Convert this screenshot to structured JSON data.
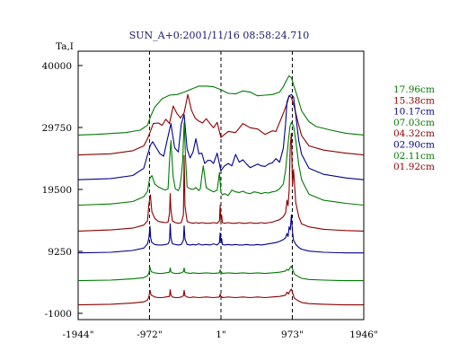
{
  "chart_data": {
    "type": "line",
    "title": "SUN_A+0:2001/11/16 08:58:24.710",
    "ylabel": "Ta,I",
    "x_ticks": [
      {
        "value": -1944,
        "label": "-1944\""
      },
      {
        "value": -972,
        "label": "-972\""
      },
      {
        "value": 1,
        "label": "1\""
      },
      {
        "value": 973,
        "label": "973\""
      },
      {
        "value": 1946,
        "label": "1946\""
      }
    ],
    "y_ticks": [
      {
        "value": 40000,
        "label": "40000"
      },
      {
        "value": 29750,
        "label": "29750"
      },
      {
        "value": 19500,
        "label": "19500"
      },
      {
        "value": 9250,
        "label": "9250"
      },
      {
        "value": -1000,
        "label": "-1000"
      }
    ],
    "xlim": [
      -1944,
      1946
    ],
    "ylim": [
      -1000,
      40000
    ],
    "markers_x": [
      -972,
      1,
      973
    ],
    "series": [
      {
        "name": "17.96cm",
        "color": "#007a00",
        "offset": 28200,
        "x": [
          -1944,
          -1700,
          -1300,
          -1100,
          -1000,
          -960,
          -900,
          -800,
          -700,
          -600,
          -500,
          -400,
          -300,
          -200,
          -100,
          0,
          100,
          200,
          300,
          400,
          500,
          600,
          700,
          800,
          850,
          900,
          930,
          960,
          1000,
          1050,
          1100,
          1200,
          1300,
          1500,
          1700,
          1946
        ],
        "values": [
          300,
          400,
          700,
          1100,
          1900,
          3300,
          4900,
          6300,
          6900,
          7000,
          7400,
          7900,
          8400,
          8400,
          8300,
          7800,
          7200,
          7100,
          7600,
          7400,
          6800,
          6900,
          7000,
          7400,
          8300,
          9500,
          10100,
          9800,
          8200,
          6300,
          4300,
          2500,
          1700,
          1100,
          600,
          300
        ]
      },
      {
        "name": "15.38cm",
        "color": "#8b0000",
        "offset": 24900,
        "x": [
          -1944,
          -1500,
          -1200,
          -1050,
          -1000,
          -960,
          -920,
          -850,
          -800,
          -750,
          -700,
          -650,
          -600,
          -550,
          -500,
          -450,
          -400,
          -350,
          -300,
          -250,
          -200,
          -150,
          -100,
          -50,
          0,
          100,
          200,
          300,
          400,
          500,
          600,
          700,
          750,
          800,
          850,
          900,
          930,
          960,
          1000,
          1050,
          1100,
          1200,
          1400,
          1700,
          1946
        ],
        "values": [
          300,
          500,
          1000,
          1800,
          3000,
          4200,
          5500,
          5600,
          5200,
          6200,
          5500,
          8400,
          7200,
          6400,
          7300,
          10300,
          7700,
          6400,
          5900,
          5600,
          6300,
          5500,
          4800,
          5700,
          3200,
          4200,
          4000,
          5500,
          4800,
          4600,
          3700,
          4300,
          4200,
          5700,
          7200,
          8800,
          10100,
          9800,
          8200,
          5700,
          3500,
          1800,
          1100,
          600,
          300
        ]
      },
      {
        "name": "10.17cm",
        "color": "#00008b",
        "offset": 20800,
        "x": [
          -1944,
          -1500,
          -1200,
          -1050,
          -1000,
          -960,
          -930,
          -880,
          -830,
          -780,
          -730,
          -680,
          -630,
          -580,
          -540,
          -500,
          -460,
          -420,
          -380,
          -340,
          -300,
          -260,
          -220,
          -180,
          -140,
          -100,
          -50,
          0,
          50,
          100,
          150,
          200,
          250,
          300,
          350,
          400,
          450,
          500,
          550,
          600,
          650,
          700,
          750,
          800,
          850,
          880,
          900,
          930,
          960,
          990,
          1020,
          1060,
          1100,
          1200,
          1400,
          1700,
          1946
        ],
        "values": [
          300,
          500,
          1000,
          2200,
          4400,
          6000,
          6600,
          5600,
          4600,
          4200,
          6900,
          9600,
          5600,
          4900,
          9500,
          11100,
          5400,
          3900,
          4900,
          7100,
          4600,
          4700,
          3000,
          3500,
          3500,
          3000,
          4700,
          1800,
          2600,
          3000,
          2600,
          4500,
          3200,
          3600,
          2900,
          2300,
          2600,
          2900,
          2600,
          2500,
          2900,
          3100,
          3800,
          3200,
          5500,
          9500,
          13200,
          14200,
          14400,
          14000,
          11000,
          6800,
          4500,
          2200,
          1200,
          600,
          300
        ]
      },
      {
        "name": "07.03cm",
        "color": "#007a00",
        "offset": 16600,
        "x": [
          -1944,
          -1500,
          -1200,
          -1050,
          -1000,
          -970,
          -940,
          -900,
          -850,
          -800,
          -760,
          -720,
          -700,
          -680,
          -650,
          -620,
          -580,
          -560,
          -540,
          -520,
          -500,
          -480,
          -460,
          -420,
          -380,
          -340,
          -300,
          -280,
          -260,
          -240,
          -200,
          -150,
          -100,
          -50,
          -20,
          0,
          20,
          50,
          100,
          150,
          200,
          250,
          300,
          350,
          400,
          450,
          500,
          550,
          600,
          650,
          700,
          750,
          800,
          850,
          880,
          900,
          920,
          940,
          960,
          990,
          1020,
          1060,
          1100,
          1200,
          1400,
          1700,
          1946
        ],
        "values": [
          300,
          500,
          900,
          1700,
          2600,
          4700,
          5200,
          3800,
          3300,
          3000,
          2800,
          3000,
          7500,
          11000,
          5000,
          3000,
          2700,
          3200,
          5000,
          7700,
          14000,
          7700,
          3300,
          3000,
          2900,
          3200,
          2700,
          3000,
          5100,
          6800,
          3200,
          2800,
          2500,
          2800,
          5700,
          2500,
          2000,
          2200,
          1900,
          2800,
          2500,
          2400,
          2600,
          2300,
          2200,
          2500,
          2400,
          2200,
          2400,
          2300,
          2500,
          2600,
          3000,
          3800,
          6000,
          8500,
          11000,
          13300,
          14000,
          13400,
          11000,
          7000,
          4500,
          2100,
          1100,
          600,
          300
        ]
      },
      {
        "name": "04.32cm",
        "color": "#8b0000",
        "offset": 12300,
        "x": [
          -1944,
          -1500,
          -1200,
          -1050,
          -1000,
          -980,
          -960,
          -940,
          -900,
          -850,
          -800,
          -750,
          -720,
          -700,
          -690,
          -680,
          -660,
          -620,
          -580,
          -540,
          -510,
          -500,
          -490,
          -460,
          -420,
          -380,
          -340,
          -300,
          -260,
          -200,
          -150,
          -100,
          -50,
          -20,
          -10,
          0,
          10,
          20,
          50,
          100,
          150,
          200,
          250,
          300,
          350,
          400,
          450,
          500,
          550,
          600,
          650,
          700,
          750,
          800,
          850,
          880,
          900,
          915,
          930,
          945,
          960,
          975,
          990,
          1020,
          1060,
          1100,
          1200,
          1400,
          1700,
          1946
        ],
        "values": [
          300,
          500,
          800,
          1300,
          2000,
          4800,
          6300,
          3500,
          2400,
          1900,
          1800,
          1700,
          1800,
          3200,
          6500,
          3800,
          2000,
          1700,
          1600,
          1700,
          3000,
          12800,
          4500,
          1900,
          1700,
          1600,
          1700,
          1600,
          1700,
          1600,
          1600,
          1700,
          1600,
          2000,
          4600,
          2100,
          3000,
          1700,
          1600,
          1700,
          1600,
          1600,
          1700,
          1600,
          1600,
          1700,
          1600,
          1600,
          1700,
          1600,
          1700,
          1800,
          2000,
          2200,
          2700,
          3300,
          5400,
          4500,
          7000,
          14500,
          16500,
          7800,
          10500,
          5000,
          2700,
          1500,
          1000,
          600,
          400,
          300
        ]
      },
      {
        "name": "02.90cm",
        "color": "#00008b",
        "offset": 8700,
        "x": [
          -1944,
          -1500,
          -1200,
          -1050,
          -1000,
          -980,
          -965,
          -955,
          -940,
          -900,
          -850,
          -800,
          -750,
          -720,
          -700,
          -690,
          -680,
          -660,
          -620,
          -580,
          -540,
          -510,
          -500,
          -490,
          -460,
          -420,
          -380,
          -340,
          -300,
          -260,
          -200,
          -150,
          -100,
          -50,
          -20,
          -10,
          0,
          10,
          20,
          50,
          100,
          150,
          200,
          250,
          300,
          350,
          400,
          450,
          500,
          550,
          600,
          650,
          700,
          750,
          800,
          850,
          880,
          900,
          915,
          930,
          945,
          960,
          975,
          990,
          1020,
          1060,
          1100,
          1200,
          1400,
          1700,
          1946
        ],
        "values": [
          300,
          400,
          700,
          1100,
          1800,
          2800,
          4700,
          2700,
          2000,
          1700,
          1600,
          1600,
          1700,
          1800,
          2300,
          5100,
          2800,
          1800,
          1700,
          1600,
          1700,
          2400,
          4800,
          2600,
          1700,
          1600,
          1700,
          1600,
          1800,
          1600,
          1700,
          1600,
          1800,
          1600,
          2000,
          3600,
          2000,
          2700,
          1700,
          1600,
          1700,
          1600,
          1700,
          1600,
          1600,
          1700,
          1600,
          1600,
          1700,
          1600,
          1700,
          1800,
          1900,
          2000,
          2200,
          2500,
          2800,
          3500,
          3000,
          4600,
          4100,
          6600,
          3800,
          2400,
          1700,
          1200,
          900,
          600,
          400,
          300,
          300
        ]
      },
      {
        "name": "02.11cm",
        "color": "#007a00",
        "offset": 4200,
        "x": [
          -1944,
          -1500,
          -1200,
          -1050,
          -1000,
          -980,
          -965,
          -950,
          -900,
          -850,
          -800,
          -750,
          -700,
          -690,
          -680,
          -660,
          -620,
          -580,
          -540,
          -510,
          -500,
          -490,
          -460,
          -420,
          -380,
          -300,
          -200,
          -100,
          -20,
          -10,
          0,
          10,
          20,
          100,
          200,
          300,
          400,
          500,
          600,
          700,
          800,
          880,
          900,
          920,
          940,
          960,
          980,
          1000,
          1050,
          1100,
          1200,
          1400,
          1700,
          1946
        ],
        "values": [
          200,
          300,
          500,
          700,
          1000,
          1500,
          2400,
          1700,
          1500,
          1400,
          1400,
          1500,
          1600,
          2300,
          1700,
          1500,
          1400,
          1400,
          1500,
          1700,
          2300,
          1600,
          1500,
          1400,
          1500,
          1400,
          1500,
          1400,
          1500,
          2000,
          1500,
          1600,
          1400,
          1500,
          1400,
          1500,
          1400,
          1500,
          1400,
          1500,
          1600,
          1800,
          2100,
          1900,
          2300,
          2600,
          2000,
          1300,
          900,
          600,
          400,
          300,
          200,
          200
        ]
      },
      {
        "name": "01.92cm",
        "color": "#8b0000",
        "offset": 200,
        "x": [
          -1944,
          -1500,
          -1200,
          -1050,
          -1000,
          -980,
          -965,
          -950,
          -900,
          -850,
          -800,
          -750,
          -700,
          -690,
          -680,
          -660,
          -620,
          -580,
          -540,
          -510,
          -500,
          -490,
          -460,
          -420,
          -380,
          -300,
          -200,
          -100,
          -20,
          -10,
          0,
          10,
          20,
          100,
          200,
          300,
          400,
          500,
          600,
          700,
          800,
          880,
          900,
          920,
          940,
          960,
          980,
          1000,
          1050,
          1100,
          1200,
          1400,
          1700,
          1946
        ],
        "values": [
          200,
          300,
          500,
          700,
          1000,
          1600,
          2600,
          1800,
          1500,
          1400,
          1400,
          1500,
          1600,
          2700,
          1800,
          1500,
          1400,
          1400,
          1500,
          1700,
          2600,
          1700,
          1500,
          1400,
          1500,
          1400,
          1500,
          1400,
          1500,
          2000,
          1500,
          1600,
          1400,
          1500,
          1400,
          1500,
          1400,
          1500,
          1400,
          1500,
          1600,
          1800,
          2300,
          2000,
          2500,
          2800,
          2100,
          1300,
          900,
          600,
          400,
          300,
          200,
          200
        ]
      }
    ],
    "legend_placement": "right",
    "grid": false
  }
}
